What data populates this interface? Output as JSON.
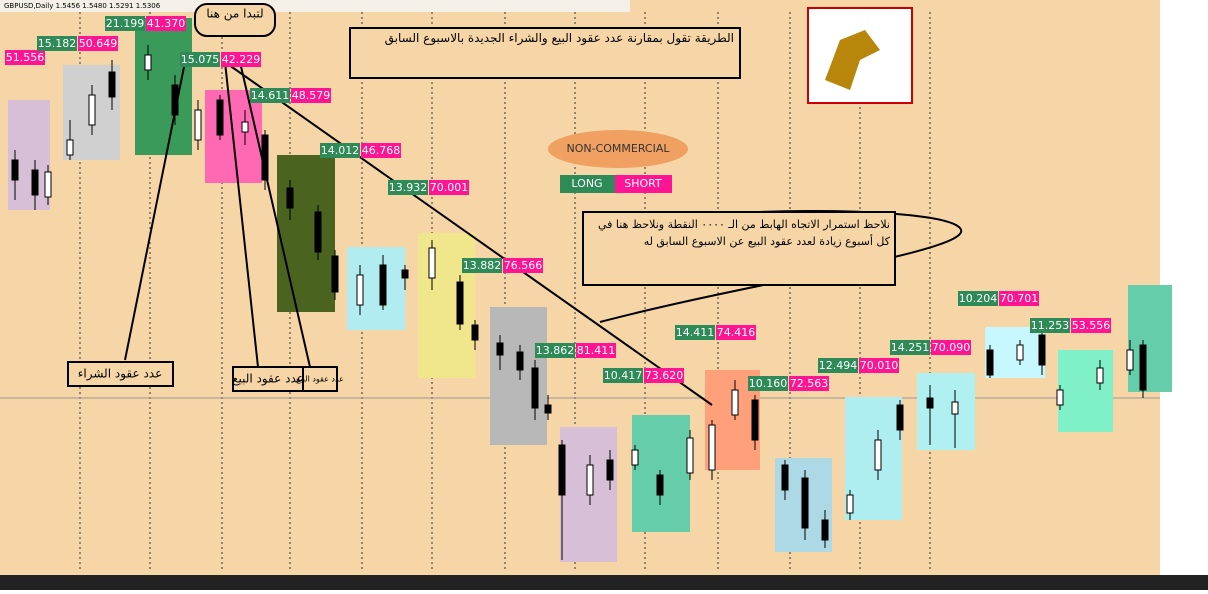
{
  "header": {
    "symbol": "GBPUSD,Daily  1.5456 1.5480 1.5291 1.5306"
  },
  "start_bubble": "لتبدا من هنا",
  "method_note": "الطريقة تقول بمقارنة عدد عقود البيع والشراء الجديدة بالاسبوع السابق",
  "trend_note": "نلاحظ استمرار الاتجاه الهابط من الـ ٠٠٠٠ النقطة ونلاحظ هنا في كل أسبوع زيادة لعدد عقود البيع عن الاسبوع السابق له",
  "buy_label": "عدد عقود الشراء",
  "sell_label_1": "عدد عقود البيع",
  "sell_label_2": "عدد عقود البيع",
  "legend": {
    "title": "NON-COMMERCIAL",
    "long": "LONG",
    "short": "SHORT"
  },
  "weeks": [
    {
      "long": "15.182",
      "short": "50.649"
    },
    {
      "long": "21.199",
      "short": "41.370"
    },
    {
      "long": "15.075",
      "short": "42.229"
    },
    {
      "long": "14.611",
      "short": "48.579"
    },
    {
      "long": "14.012",
      "short": "46.768"
    },
    {
      "long": "13.932",
      "short": "70.001"
    },
    {
      "long": "13.882",
      "short": "76.566"
    },
    {
      "long": "13.862",
      "short": "81.411"
    },
    {
      "long": "10.417",
      "short": "73.620"
    },
    {
      "long": "14.411",
      "short": "74.416"
    },
    {
      "long": "10.160",
      "short": "72.563"
    },
    {
      "long": "12.494",
      "short": "70.010"
    },
    {
      "long": "14.251",
      "short": "70.090"
    },
    {
      "long": "10.204",
      "short": "70.701"
    },
    {
      "long": "11.253",
      "short": "53.556"
    }
  ],
  "first_short": "51.556"
}
